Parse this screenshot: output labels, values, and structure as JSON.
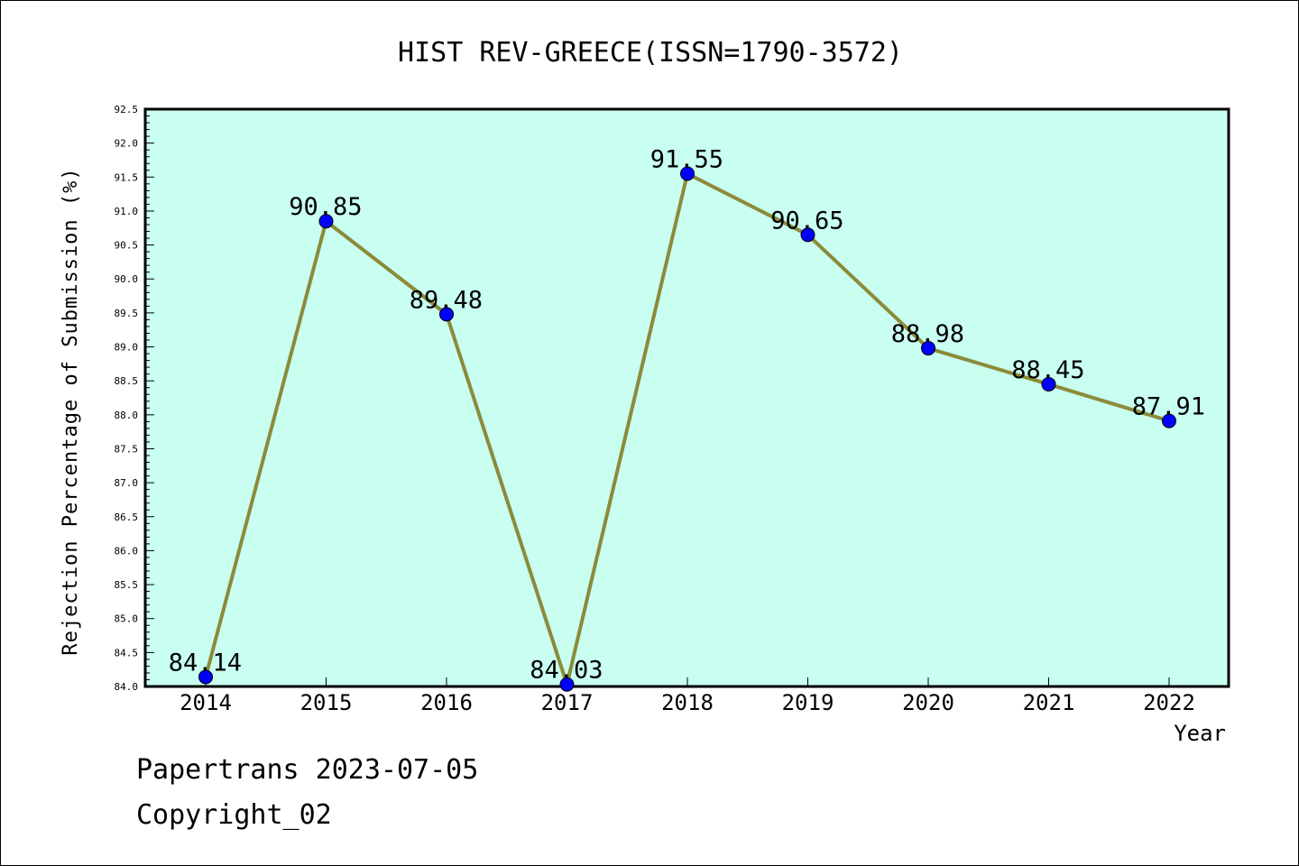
{
  "chart_data": {
    "type": "line",
    "title": "HIST REV-GREECE(ISSN=1790-3572)",
    "xlabel": "Year",
    "ylabel": "Rejection Percentage of Submission (%)",
    "categories": [
      "2014",
      "2015",
      "2016",
      "2017",
      "2018",
      "2019",
      "2020",
      "2021",
      "2022"
    ],
    "values": [
      84.14,
      90.85,
      89.48,
      84.03,
      91.55,
      90.65,
      88.98,
      88.45,
      87.91
    ],
    "data_labels": [
      "84.14",
      "90.85",
      "89.48",
      "84.03",
      "91.55",
      "90.65",
      "88.98",
      "88.45",
      "87.91"
    ],
    "ylim": [
      84.0,
      92.5
    ],
    "yticks": [
      "84.0",
      "84.5",
      "85.0",
      "85.5",
      "86.0",
      "86.5",
      "87.0",
      "87.5",
      "88.0",
      "88.5",
      "89.0",
      "89.5",
      "90.0",
      "90.5",
      "91.0",
      "91.5",
      "92.0",
      "92.5"
    ],
    "grid": false,
    "colors": {
      "plot_background": "#c8fff0",
      "line": "#8b8b3a",
      "marker": "#0000ff"
    }
  },
  "footer": {
    "line1": "Papertrans 2023-07-05",
    "line2": "Copyright_02"
  }
}
